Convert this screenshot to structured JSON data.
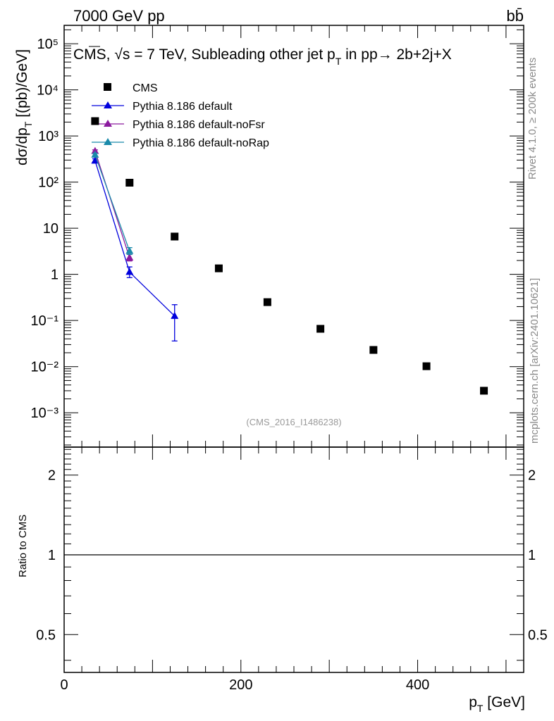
{
  "header": {
    "energy_label": "7000 GeV pp",
    "process_label": "bb̄"
  },
  "side_labels": {
    "rivet": "Rivet 4.1.0, ≥ 200k events",
    "mcplots": "mcplots.cern.ch [arXiv:2401.10621]"
  },
  "watermark": "(CMS_2016_I1486238)",
  "chart_data": [
    {
      "type": "scatter",
      "panel": "main",
      "title": "CMS, √s = 7 TeV, Subleading other jet pT in pp→ 2b+2j+X",
      "title_parts": {
        "pre": "CMS, ",
        "sqrt": "√s",
        "mid": " = 7 TeV, Subleading other jet p",
        "sub": "T",
        "post": " in pp→  2b+2j+X"
      },
      "xlabel": "pT [GeV]",
      "ylabel": "dσ/dpT [(pb)/GeV]",
      "yscale": "log",
      "xlim": [
        0,
        520
      ],
      "ylim": [
        0.00018,
        250000
      ],
      "x_ticks": [
        0,
        200,
        400
      ],
      "y_ticks": [
        {
          "value": 100000,
          "label": "10⁵"
        },
        {
          "value": 10000,
          "label": "10⁴"
        },
        {
          "value": 1000,
          "label": "10³"
        },
        {
          "value": 100,
          "label": "10²"
        },
        {
          "value": 10,
          "label": "10"
        },
        {
          "value": 1,
          "label": "1"
        },
        {
          "value": 0.1,
          "label": "10⁻¹"
        },
        {
          "value": 0.01,
          "label": "10⁻²"
        },
        {
          "value": 0.001,
          "label": "10⁻³"
        }
      ],
      "legend_position": "top-left",
      "series": [
        {
          "name": "CMS",
          "style": "square-marker",
          "color": "#000000",
          "points": [
            {
              "x": 35,
              "y": 2100
            },
            {
              "x": 74,
              "y": 97
            },
            {
              "x": 125,
              "y": 6.6
            },
            {
              "x": 175,
              "y": 1.35
            },
            {
              "x": 230,
              "y": 0.25
            },
            {
              "x": 290,
              "y": 0.066
            },
            {
              "x": 350,
              "y": 0.023
            },
            {
              "x": 410,
              "y": 0.0102
            },
            {
              "x": 475,
              "y": 0.003
            }
          ]
        },
        {
          "name": "Pythia 8.186 default",
          "style": "line-triangle",
          "color": "#0000dd",
          "points": [
            {
              "x": 35,
              "y": 290,
              "ylo": 260,
              "yhi": 320
            },
            {
              "x": 74,
              "y": 1.12,
              "ylo": 0.85,
              "yhi": 1.45
            },
            {
              "x": 125,
              "y": 0.125,
              "ylo": 0.036,
              "yhi": 0.22
            }
          ]
        },
        {
          "name": "Pythia 8.186 default-noFsr",
          "style": "line-triangle",
          "color": "#8b1a9e",
          "points": [
            {
              "x": 35,
              "y": 470,
              "ylo": 440,
              "yhi": 500
            },
            {
              "x": 74,
              "y": 2.3,
              "ylo": 1.95,
              "yhi": 2.7
            }
          ]
        },
        {
          "name": "Pythia 8.186 default-noRap",
          "style": "line-triangle",
          "color": "#1a8aaa",
          "points": [
            {
              "x": 35,
              "y": 390,
              "ylo": 360,
              "yhi": 420
            },
            {
              "x": 74,
              "y": 3.2,
              "ylo": 2.7,
              "yhi": 3.8
            }
          ]
        }
      ]
    },
    {
      "type": "line",
      "panel": "ratio",
      "ylabel": "Ratio to CMS",
      "xlabel": "pT [GeV]",
      "xlim": [
        0,
        520
      ],
      "ylim": [
        0.36,
        2.55
      ],
      "yscale": "log",
      "y_ticks": [
        {
          "value": 2,
          "label": "2"
        },
        {
          "value": 1,
          "label": "1"
        },
        {
          "value": 0.5,
          "label": "0.5"
        }
      ],
      "reference_line": 1
    }
  ]
}
